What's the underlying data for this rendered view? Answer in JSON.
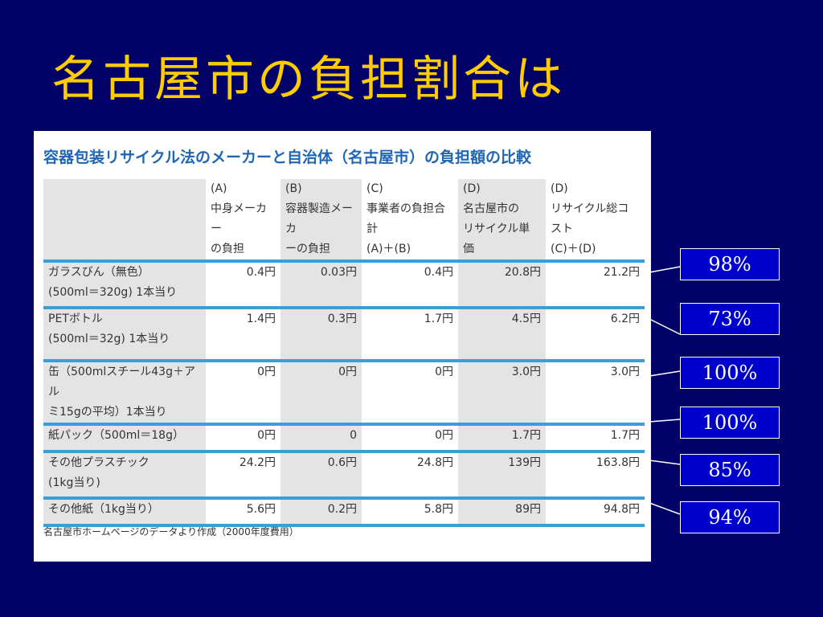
{
  "slide": {
    "title": "名古屋市の負担割合は"
  },
  "figure": {
    "title": "容器包装リサイクル法のメーカーと自治体（名古屋市）の負担額の比較",
    "columns": [
      {
        "label": "",
        "lines": []
      },
      {
        "label": "(A)",
        "lines": [
          "中身メーカー",
          "の負担"
        ]
      },
      {
        "label": "(B)",
        "lines": [
          "容器製造メーカ",
          "ーの負担"
        ]
      },
      {
        "label": "(C)",
        "lines": [
          "事業者の負担合計",
          "(A)＋(B)"
        ]
      },
      {
        "label": "(D)",
        "lines": [
          "名古屋市の",
          "リサイクル単価"
        ]
      },
      {
        "label": "(D)",
        "lines": [
          "リサイクル総コスト",
          "(C)＋(D)"
        ]
      }
    ],
    "rows": [
      {
        "label": [
          "ガラスびん（無色）",
          "(500ml＝320g) 1本当り"
        ],
        "a": "0.4円",
        "b": "0.03円",
        "c": "0.4円",
        "d": "20.8円",
        "total": "21.2円"
      },
      {
        "label": [
          "PETボトル",
          "(500ml＝32g) 1本当り"
        ],
        "a": "1.4円",
        "b": "0.3円",
        "c": "1.7円",
        "d": "4.5円",
        "total": "6.2円"
      },
      {
        "label": [
          "缶（500mlスチール43g＋アル",
          "ミ15gの平均）1本当り"
        ],
        "a": "0円",
        "b": "0円",
        "c": "0円",
        "d": "3.0円",
        "total": "3.0円"
      },
      {
        "label": [
          "紙パック（500ml＝18g）"
        ],
        "a": "0円",
        "b": "0",
        "c": "0円",
        "d": "1.7円",
        "total": "1.7円"
      },
      {
        "label": [
          "その他プラスチック",
          "(1kg当り)"
        ],
        "a": "24.2円",
        "b": "0.6円",
        "c": "24.8円",
        "d": "139円",
        "total": "163.8円"
      },
      {
        "label": [
          "その他紙（1kg当り）"
        ],
        "a": "5.6円",
        "b": "0.2円",
        "c": "5.8円",
        "d": "89円",
        "total": "94.8円"
      }
    ],
    "source": "名古屋市ホームページのデータより作成（2000年度費用）"
  },
  "callouts": [
    "98%",
    "73%",
    "100%",
    "100%",
    "85%",
    "94%"
  ],
  "colors": {
    "background": "#000066",
    "title": "#ffcc00",
    "accent": "#3a9fd8",
    "callout": "#0000cc"
  }
}
